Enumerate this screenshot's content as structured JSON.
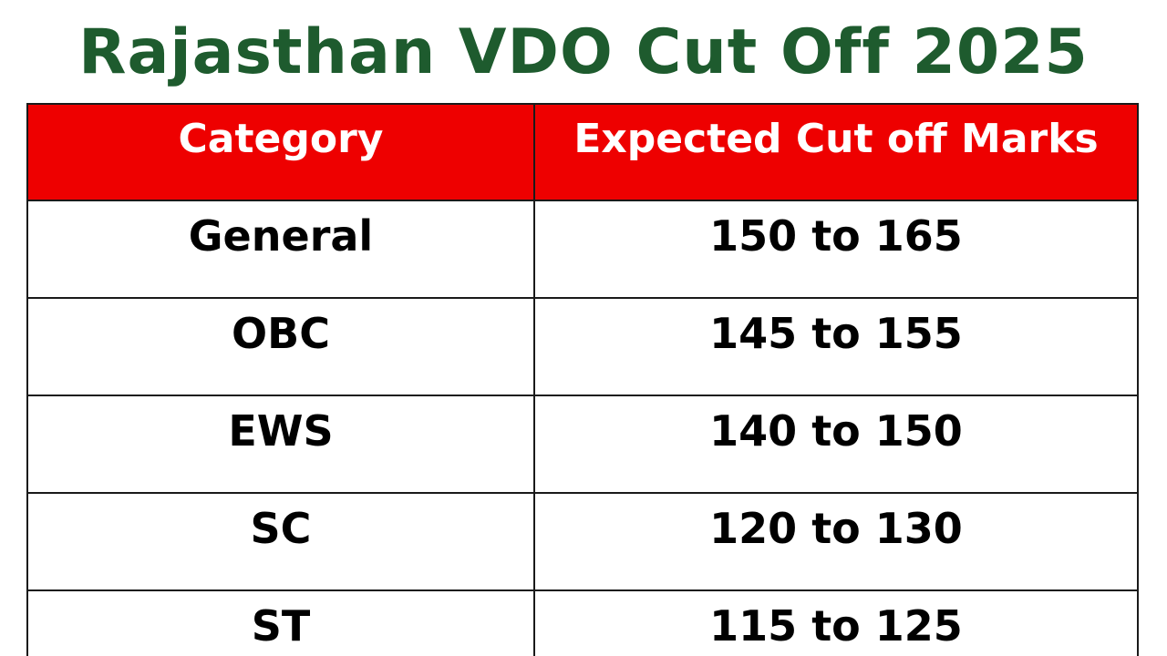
{
  "title": "Rajasthan VDO Cut Off 2025",
  "colors": {
    "title": "#1e5b2e",
    "header_bg": "#ee0000",
    "header_text": "#ffffff",
    "border": "#1a1a1a"
  },
  "table": {
    "headers": [
      "Category",
      "Expected Cut off Marks"
    ],
    "rows": [
      {
        "category": "General",
        "marks": "150 to 165"
      },
      {
        "category": "OBC",
        "marks": "145 to 155"
      },
      {
        "category": "EWS",
        "marks": "140 to 150"
      },
      {
        "category": "SC",
        "marks": "120 to 130"
      },
      {
        "category": "ST",
        "marks": "115 to 125"
      }
    ]
  }
}
